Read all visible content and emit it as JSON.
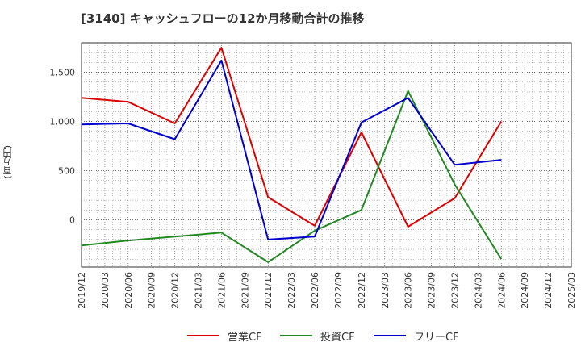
{
  "chart_data": {
    "type": "line",
    "title": "[3140]  キャッシュフローの12か月移動合計の推移",
    "ylabel": "(百万円)",
    "xlabel": "",
    "ylim": [
      -480,
      1800
    ],
    "yticks": [
      0,
      500,
      1000,
      1500
    ],
    "ytick_labels": [
      "0",
      "500",
      "1,000",
      "1,500"
    ],
    "xtick_labels": [
      "2019/12",
      "2020/03",
      "2020/06",
      "2020/09",
      "2020/12",
      "2021/03",
      "2021/06",
      "2021/09",
      "2021/12",
      "2022/03",
      "2022/06",
      "2022/09",
      "2022/12",
      "2023/03",
      "2023/06",
      "2023/09",
      "2023/12",
      "2024/03",
      "2024/06",
      "2024/09",
      "2024/12",
      "2025/03"
    ],
    "grid": true,
    "legend_position": "bottom",
    "series": [
      {
        "name": "営業CF",
        "color": "#dd0000",
        "points": [
          {
            "x": "2019/12",
            "y": 1240
          },
          {
            "x": "2020/06",
            "y": 1200
          },
          {
            "x": "2020/12",
            "y": 980
          },
          {
            "x": "2021/06",
            "y": 1750
          },
          {
            "x": "2021/12",
            "y": 230
          },
          {
            "x": "2022/06",
            "y": -60
          },
          {
            "x": "2022/12",
            "y": 890
          },
          {
            "x": "2023/06",
            "y": -70
          },
          {
            "x": "2023/12",
            "y": 220
          },
          {
            "x": "2024/06",
            "y": 1000
          }
        ]
      },
      {
        "name": "投資CF",
        "color": "#228822",
        "points": [
          {
            "x": "2019/12",
            "y": -260
          },
          {
            "x": "2020/06",
            "y": -210
          },
          {
            "x": "2020/12",
            "y": -170
          },
          {
            "x": "2021/06",
            "y": -130
          },
          {
            "x": "2021/12",
            "y": -430
          },
          {
            "x": "2022/06",
            "y": -110
          },
          {
            "x": "2022/12",
            "y": 100
          },
          {
            "x": "2023/06",
            "y": 1310
          },
          {
            "x": "2023/12",
            "y": 360
          },
          {
            "x": "2024/06",
            "y": -400
          }
        ]
      },
      {
        "name": "フリーCF",
        "color": "#0000cc",
        "points": [
          {
            "x": "2019/12",
            "y": 970
          },
          {
            "x": "2020/06",
            "y": 980
          },
          {
            "x": "2020/12",
            "y": 820
          },
          {
            "x": "2021/06",
            "y": 1620
          },
          {
            "x": "2021/12",
            "y": -200
          },
          {
            "x": "2022/06",
            "y": -170
          },
          {
            "x": "2022/12",
            "y": 990
          },
          {
            "x": "2023/06",
            "y": 1240
          },
          {
            "x": "2023/12",
            "y": 560
          },
          {
            "x": "2024/06",
            "y": 610
          }
        ]
      }
    ]
  }
}
